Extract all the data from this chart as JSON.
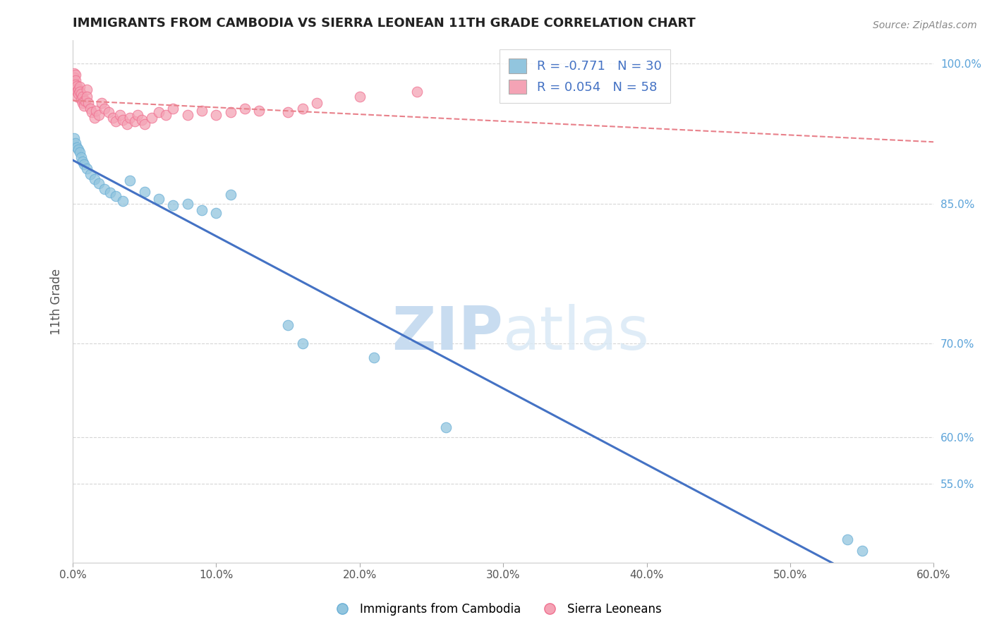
{
  "title": "IMMIGRANTS FROM CAMBODIA VS SIERRA LEONEAN 11TH GRADE CORRELATION CHART",
  "source_text": "Source: ZipAtlas.com",
  "ylabel": "11th Grade",
  "watermark_zip": "ZIP",
  "watermark_atlas": "atlas",
  "legend_blue_label": "Immigrants from Cambodia",
  "legend_pink_label": "Sierra Leoneans",
  "blue_R": -0.771,
  "blue_N": 30,
  "pink_R": 0.054,
  "pink_N": 58,
  "blue_color": "#92C5DE",
  "pink_color": "#F4A3B5",
  "blue_edge_color": "#6AAFD6",
  "pink_edge_color": "#F07090",
  "blue_line_color": "#4472C4",
  "pink_line_color": "#E8808A",
  "xlim": [
    0.0,
    0.6
  ],
  "ylim": [
    0.465,
    1.025
  ],
  "xtick_vals": [
    0.0,
    0.1,
    0.2,
    0.3,
    0.4,
    0.5,
    0.6
  ],
  "xtick_labels": [
    "0.0%",
    "10.0%",
    "20.0%",
    "30.0%",
    "40.0%",
    "50.0%",
    "60.0%"
  ],
  "ytick_vals": [
    0.55,
    0.6,
    0.7,
    0.85,
    1.0
  ],
  "ytick_labels": [
    "55.0%",
    "60.0%",
    "70.0%",
    "85.0%",
    "100.0%"
  ],
  "blue_x": [
    0.001,
    0.002,
    0.003,
    0.004,
    0.005,
    0.006,
    0.007,
    0.008,
    0.01,
    0.012,
    0.015,
    0.018,
    0.022,
    0.026,
    0.03,
    0.035,
    0.04,
    0.05,
    0.06,
    0.07,
    0.08,
    0.09,
    0.1,
    0.11,
    0.15,
    0.16,
    0.21,
    0.26,
    0.54,
    0.55
  ],
  "blue_y": [
    0.92,
    0.915,
    0.91,
    0.908,
    0.905,
    0.9,
    0.895,
    0.892,
    0.888,
    0.882,
    0.876,
    0.872,
    0.866,
    0.862,
    0.858,
    0.853,
    0.875,
    0.863,
    0.855,
    0.848,
    0.85,
    0.843,
    0.84,
    0.86,
    0.72,
    0.7,
    0.685,
    0.61,
    0.49,
    0.478
  ],
  "pink_x": [
    0.001,
    0.001,
    0.001,
    0.001,
    0.002,
    0.002,
    0.002,
    0.002,
    0.003,
    0.003,
    0.003,
    0.004,
    0.004,
    0.005,
    0.005,
    0.006,
    0.006,
    0.007,
    0.007,
    0.008,
    0.008,
    0.009,
    0.01,
    0.01,
    0.011,
    0.012,
    0.013,
    0.015,
    0.016,
    0.018,
    0.02,
    0.022,
    0.025,
    0.028,
    0.03,
    0.033,
    0.035,
    0.038,
    0.04,
    0.043,
    0.045,
    0.048,
    0.05,
    0.055,
    0.06,
    0.065,
    0.07,
    0.08,
    0.09,
    0.1,
    0.11,
    0.12,
    0.13,
    0.15,
    0.16,
    0.17,
    0.2,
    0.24
  ],
  "pink_y": [
    0.99,
    0.985,
    0.98,
    0.975,
    0.988,
    0.982,
    0.978,
    0.972,
    0.976,
    0.97,
    0.965,
    0.972,
    0.968,
    0.975,
    0.97,
    0.968,
    0.962,
    0.965,
    0.958,
    0.96,
    0.955,
    0.96,
    0.972,
    0.965,
    0.958,
    0.952,
    0.948,
    0.942,
    0.95,
    0.945,
    0.958,
    0.952,
    0.948,
    0.942,
    0.938,
    0.945,
    0.94,
    0.935,
    0.942,
    0.938,
    0.945,
    0.94,
    0.935,
    0.942,
    0.948,
    0.945,
    0.952,
    0.945,
    0.95,
    0.945,
    0.948,
    0.952,
    0.95,
    0.948,
    0.952,
    0.958,
    0.965,
    0.97
  ],
  "background_color": "#FFFFFF",
  "grid_color": "#CCCCCC",
  "title_color": "#222222",
  "tick_color": "#5BA3D9",
  "axis_label_color": "#555555"
}
